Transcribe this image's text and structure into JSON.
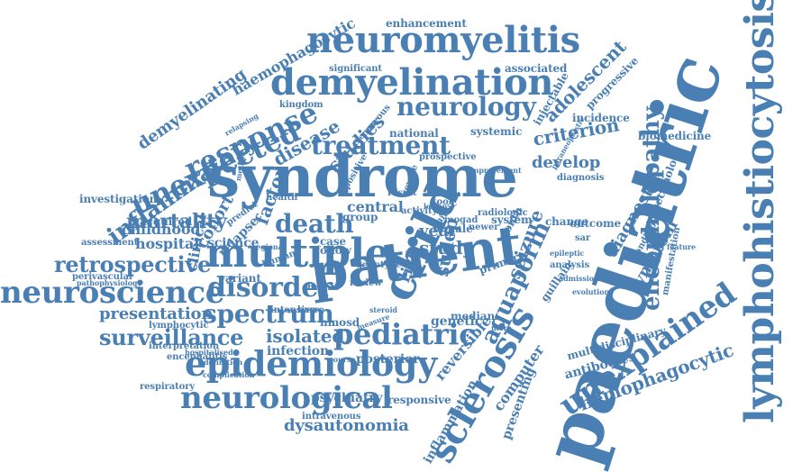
{
  "cloud": {
    "color": "#4a7fb3",
    "words": [
      "syndrome",
      "paediatric",
      "patient",
      "lymphohistiocytosis",
      "multiple",
      "neuromyelitis",
      "demyelination",
      "epidemiology",
      "neurological",
      "neuroscience",
      "sclerosis",
      "unexplained",
      "treatment",
      "child",
      "neurology",
      "response",
      "disorder",
      "unexpected",
      "inflammatory",
      "spectrum",
      "pediatric",
      "death",
      "encephalopathy",
      "aquaporin",
      "surveillance",
      "retrospective",
      "mortality",
      "hemophagocytic",
      "cohort",
      "demyelinating",
      "haemophagocytic",
      "disease",
      "studies",
      "factor",
      "study",
      "seizure",
      "sudep",
      "risk",
      "year",
      "central",
      "criterion",
      "develop",
      "adolescent",
      "diagnostic",
      "symptom",
      "presentation",
      "isolated",
      "hospital",
      "childhood",
      "science",
      "clinical",
      "relapse",
      "infection",
      "posterior",
      "dysautonomia",
      "psychiatry",
      "responsive",
      "genetic",
      "reversible",
      "computer",
      "presenting",
      "inflammation",
      "multidisciplinary",
      "antibodies",
      "biomedicine",
      "technology",
      "progressive",
      "injectable",
      "incidence",
      "enhancement",
      "associated",
      "significant",
      "kingdom",
      "national",
      "systemic",
      "nmosd",
      "acquired",
      "investigation",
      "assessment",
      "perivascular",
      "pathophysiology",
      "lymphocytic",
      "interpretation",
      "encephalitis",
      "respiratory",
      "intravenous",
      "definition",
      "complication",
      "hospitalised",
      "intensive",
      "chronic",
      "variant",
      "outcome",
      "change",
      "diagnosis",
      "mogad",
      "mimic",
      "female",
      "month",
      "primary",
      "median",
      "guillain",
      "manifestation",
      "condition",
      "nervous",
      "prospective",
      "group",
      "follow",
      "case",
      "system",
      "newer",
      "review",
      "genotype",
      "positive",
      "therapy",
      "relapsing",
      "health",
      "predict",
      "human",
      "barre",
      "severe",
      "more",
      "activity",
      "radiologic",
      "analysis",
      "sar",
      "tool",
      "lesion",
      "result",
      "improvement",
      "paraneoplastic",
      "epileptic",
      "admission",
      "feature",
      "method",
      "regional",
      "evolution",
      "steroid",
      "measure",
      "course"
    ]
  }
}
